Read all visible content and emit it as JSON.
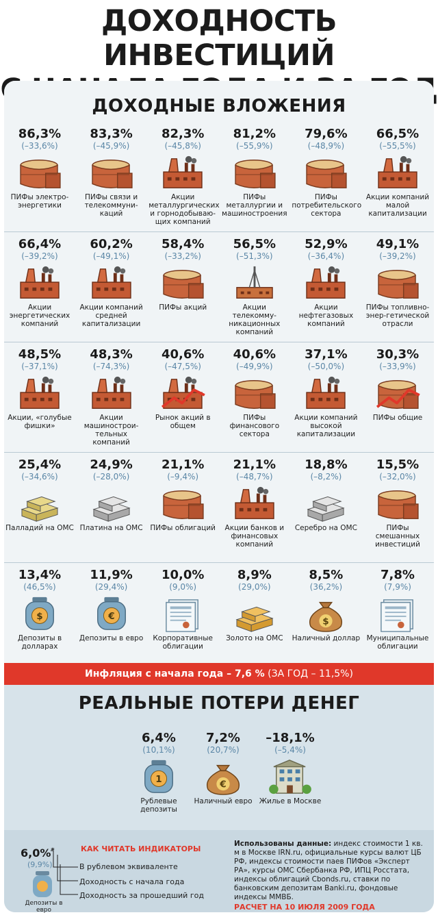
{
  "title": {
    "line1": "ДОХОДНОСТЬ ИНВЕСТИЦИЙ",
    "line2": "С НАЧАЛА ГОДА И ЗА ГОД"
  },
  "income": {
    "title": "ДОХОДНЫЕ ВЛОЖЕНИЯ",
    "rows": [
      [
        {
          "value": "86,3%",
          "sub": "(–33,6%)",
          "label": "ПИФы электро-энергетики",
          "icon": "barrel"
        },
        {
          "value": "83,3%",
          "sub": "(–45,9%)",
          "label": "ПИФы связи и телекоммуни-каций",
          "icon": "barrel"
        },
        {
          "value": "82,3%",
          "sub": "(–45,8%)",
          "label": "Акции металлургических и горнодобываю-щих компаний",
          "icon": "factory"
        },
        {
          "value": "81,2%",
          "sub": "(–55,9%)",
          "label": "ПИФы металлургии и машиностроения",
          "icon": "barrel"
        },
        {
          "value": "79,6%",
          "sub": "(–48,9%)",
          "label": "ПИФы потребительского сектора",
          "icon": "barrel"
        },
        {
          "value": "66,5%",
          "sub": "(–55,5%)",
          "label": "Акции компаний малой капитализации",
          "icon": "factory"
        }
      ],
      [
        {
          "value": "66,4%",
          "sub": "(–39,2%)",
          "label": "Акции энергетических компаний",
          "icon": "factory"
        },
        {
          "value": "60,2%",
          "sub": "(–49,1%)",
          "label": "Акции компаний средней капитализации",
          "icon": "factory"
        },
        {
          "value": "58,4%",
          "sub": "(–33,2%)",
          "label": "ПИФы акций",
          "icon": "barrel"
        },
        {
          "value": "56,5%",
          "sub": "(–51,3%)",
          "label": "Акции телекомму-никационных компаний",
          "icon": "tower"
        },
        {
          "value": "52,9%",
          "sub": "(–36,4%)",
          "label": "Акции нефтегазовых компаний",
          "icon": "factory"
        },
        {
          "value": "49,1%",
          "sub": "(–39,2%)",
          "label": "ПИФы топливно-энер-гетической отрасли",
          "icon": "barrel"
        }
      ],
      [
        {
          "value": "48,5%",
          "sub": "(–37,1%)",
          "label": "Акции, «голубые фишки»",
          "icon": "factory"
        },
        {
          "value": "48,3%",
          "sub": "(–74,3%)",
          "label": "Акции машинострои-тельных компаний",
          "icon": "factory"
        },
        {
          "value": "40,6%",
          "sub": "(–47,5%)",
          "label": "Рынок акций в общем",
          "icon": "factory-trend"
        },
        {
          "value": "40,6%",
          "sub": "(–49,9%)",
          "label": "ПИФы финансового сектора",
          "icon": "barrel"
        },
        {
          "value": "37,1%",
          "sub": "(–50,0%)",
          "label": "Акции компаний высокой капитализации",
          "icon": "factory"
        },
        {
          "value": "30,3%",
          "sub": "(–33,9%)",
          "label": "ПИФы общие",
          "icon": "barrel-trend"
        }
      ],
      [
        {
          "value": "25,4%",
          "sub": "(–34,6%)",
          "label": "Палладий на ОМС",
          "icon": "gold"
        },
        {
          "value": "24,9%",
          "sub": "(–28,0%)",
          "label": "Платина на ОМС",
          "icon": "silver"
        },
        {
          "value": "21,1%",
          "sub": "(–9,4%)",
          "label": "ПИФы облигаций",
          "icon": "barrel"
        },
        {
          "value": "21,1%",
          "sub": "(–48,7%)",
          "label": "Акции банков и финансовых компаний",
          "icon": "factory"
        },
        {
          "value": "18,8%",
          "sub": "(–8,2%)",
          "label": "Серебро на ОМС",
          "icon": "silver"
        },
        {
          "value": "15,5%",
          "sub": "(–32,0%)",
          "label": "ПИФы смешанных инвестиций",
          "icon": "barrel"
        }
      ],
      [
        {
          "value": "13,4%",
          "sub": "(46,5%)",
          "label": "Депозиты в долларах",
          "icon": "jar-dollar"
        },
        {
          "value": "11,9%",
          "sub": "(29,4%)",
          "label": "Депозиты в евро",
          "icon": "jar-euro"
        },
        {
          "value": "10,0%",
          "sub": "(9,0%)",
          "label": "Корпоративные облигации",
          "icon": "bond"
        },
        {
          "value": "8,9%",
          "sub": "(29,0%)",
          "label": "Золото на ОМС",
          "icon": "gold-bars"
        },
        {
          "value": "8,5%",
          "sub": "(36,2%)",
          "label": "Наличный доллар",
          "icon": "bag-dollar"
        },
        {
          "value": "7,8%",
          "sub": "(7,9%)",
          "label": "Муниципальные облигации",
          "icon": "bond"
        }
      ]
    ]
  },
  "inflation": {
    "main": "Инфляция с начала года – 7,6 %",
    "year": "(ЗА ГОД – 11,5%)"
  },
  "losses": {
    "title": "РЕАЛЬНЫЕ ПОТЕРИ ДЕНЕГ",
    "items": [
      {
        "value": "6,4%",
        "sub": "(10,1%)",
        "label": "Рублевые депозиты",
        "icon": "jar-ruble"
      },
      {
        "value": "7,2%",
        "sub": "(20,7%)",
        "label": "Наличный евро",
        "icon": "bag-euro"
      },
      {
        "value": "–18,1%",
        "sub": "(–5,4%)",
        "label": "Жилье в Москве",
        "icon": "house"
      }
    ]
  },
  "legend": {
    "value": "6,0%",
    "sub": "(9,9%)",
    "caption": "Депозиты в евро",
    "title": "КАК ЧИТАТЬ ИНДИКАТОРЫ",
    "line1": "В рублевом эквиваленте",
    "line2": "Доходность с начала года",
    "line3": "Доходность за прошедший год"
  },
  "sources": {
    "label": "Использованы данные:",
    "text": "индекс стоимости 1 кв. м в Москве IRN.ru, официальные курсы валют ЦБ РФ, индексы стоимости паев ПИФов «Эксперт РА», курсы ОМС Сбербанка РФ, ИПЦ Росстата, индексы облигаций Cbonds.ru, ставки по банковским депозитам Banki.ru, фондовые индексы ММВБ.",
    "date": "РАСЧЕТ НА 10 ИЮЛЯ 2009 ГОДА"
  },
  "colors": {
    "accent": "#e0382a",
    "sub": "#5a86a6",
    "barrel": "#c8643c",
    "factory": "#c45a34"
  }
}
